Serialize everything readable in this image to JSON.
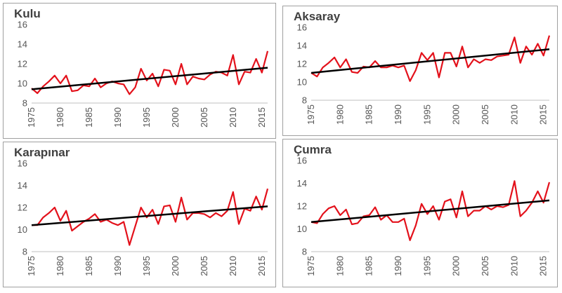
{
  "chart_data": [
    {
      "type": "line",
      "title": "Kulu",
      "xlabel": "",
      "ylabel": "",
      "xlim": [
        1975,
        2016
      ],
      "ylim": [
        8,
        16
      ],
      "yticks": [
        "8",
        "10",
        "12",
        "14",
        "16"
      ],
      "xticks": [
        "1975",
        "1980",
        "1985",
        "1990",
        "1995",
        "2000",
        "2005",
        "2010",
        "2015"
      ],
      "grid": false,
      "series": [
        {
          "color": "#e3111b",
          "x": [
            1975,
            1976,
            1977,
            1978,
            1979,
            1980,
            1981,
            1982,
            1983,
            1984,
            1985,
            1986,
            1987,
            1988,
            1989,
            1990,
            1991,
            1992,
            1993,
            1994,
            1995,
            1996,
            1997,
            1998,
            1999,
            2000,
            2001,
            2002,
            2003,
            2004,
            2005,
            2006,
            2007,
            2008,
            2009,
            2010,
            2011,
            2012,
            2013,
            2014,
            2015,
            2016
          ],
          "y": [
            9.5,
            9.0,
            9.7,
            10.2,
            10.8,
            10.0,
            10.8,
            9.2,
            9.3,
            9.8,
            9.7,
            10.5,
            9.6,
            10.0,
            10.2,
            10.0,
            9.9,
            8.9,
            9.6,
            11.5,
            10.3,
            11.0,
            9.7,
            11.4,
            11.3,
            9.9,
            12.0,
            9.9,
            10.7,
            10.5,
            10.4,
            10.9,
            11.2,
            11.1,
            10.8,
            12.9,
            9.9,
            11.2,
            11.1,
            12.5,
            11.1,
            13.3
          ]
        },
        {
          "color": "#000000",
          "trend": [
            9.4,
            11.6
          ]
        }
      ]
    },
    {
      "type": "line",
      "title": "Aksaray",
      "xlabel": "",
      "ylabel": "",
      "xlim": [
        1975,
        2016
      ],
      "ylim": [
        8,
        16
      ],
      "yticks": [
        "8",
        "10",
        "12",
        "14",
        "16"
      ],
      "xticks": [
        "1975",
        "1980",
        "1985",
        "1990",
        "1995",
        "2000",
        "2005",
        "2010",
        "2015"
      ],
      "grid": false,
      "series": [
        {
          "color": "#e3111b",
          "x": [
            1975,
            1976,
            1977,
            1978,
            1979,
            1980,
            1981,
            1982,
            1983,
            1984,
            1985,
            1986,
            1987,
            1988,
            1989,
            1990,
            1991,
            1992,
            1993,
            1994,
            1995,
            1996,
            1997,
            1998,
            1999,
            2000,
            2001,
            2002,
            2003,
            2004,
            2005,
            2006,
            2007,
            2008,
            2009,
            2010,
            2011,
            2012,
            2013,
            2014,
            2015,
            2016
          ],
          "y": [
            11.0,
            10.6,
            11.6,
            12.1,
            12.7,
            11.6,
            12.5,
            11.1,
            11.0,
            11.7,
            11.6,
            12.3,
            11.6,
            11.6,
            11.8,
            11.6,
            11.8,
            10.1,
            11.3,
            13.2,
            12.4,
            13.2,
            10.5,
            13.2,
            13.2,
            11.7,
            13.9,
            11.6,
            12.5,
            12.1,
            12.5,
            12.4,
            12.8,
            12.9,
            13.0,
            14.9,
            12.1,
            13.9,
            13.0,
            14.2,
            12.9,
            15.1
          ]
        },
        {
          "color": "#000000",
          "trend": [
            11.0,
            13.6
          ]
        }
      ]
    },
    {
      "type": "line",
      "title": "Karapınar",
      "xlabel": "",
      "ylabel": "",
      "xlim": [
        1975,
        2016
      ],
      "ylim": [
        8,
        16
      ],
      "yticks": [
        "8",
        "10",
        "12",
        "14",
        "16"
      ],
      "xticks": [
        "1975",
        "1980",
        "1985",
        "1990",
        "1995",
        "2000",
        "2005",
        "2010",
        "2015"
      ],
      "grid": false,
      "series": [
        {
          "color": "#e3111b",
          "x": [
            1975,
            1976,
            1977,
            1978,
            1979,
            1980,
            1981,
            1982,
            1983,
            1984,
            1985,
            1986,
            1987,
            1988,
            1989,
            1990,
            1991,
            1992,
            1993,
            1994,
            1995,
            1996,
            1997,
            1998,
            1999,
            2000,
            2001,
            2002,
            2003,
            2004,
            2005,
            2006,
            2007,
            2008,
            2009,
            2010,
            2011,
            2012,
            2013,
            2014,
            2015,
            2016
          ],
          "y": [
            10.4,
            10.4,
            11.1,
            11.5,
            12.0,
            10.8,
            11.7,
            9.9,
            10.3,
            10.7,
            11.0,
            11.4,
            10.7,
            10.9,
            10.6,
            10.4,
            10.7,
            8.6,
            10.3,
            12.0,
            11.1,
            11.8,
            10.5,
            12.1,
            12.2,
            10.7,
            12.9,
            10.9,
            11.5,
            11.5,
            11.4,
            11.1,
            11.5,
            11.2,
            11.7,
            13.4,
            10.5,
            11.9,
            11.7,
            13.0,
            11.8,
            13.7
          ]
        },
        {
          "color": "#000000",
          "trend": [
            10.4,
            12.1
          ]
        }
      ]
    },
    {
      "type": "line",
      "title": "Çumra",
      "xlabel": "",
      "ylabel": "",
      "xlim": [
        1975,
        2016
      ],
      "ylim": [
        8,
        16
      ],
      "yticks": [
        "8",
        "10",
        "12",
        "14",
        "16"
      ],
      "xticks": [
        "1975",
        "1980",
        "1985",
        "1990",
        "1995",
        "2000",
        "2005",
        "2010",
        "2015"
      ],
      "grid": false,
      "series": [
        {
          "color": "#e3111b",
          "x": [
            1975,
            1976,
            1977,
            1978,
            1979,
            1980,
            1981,
            1982,
            1983,
            1984,
            1985,
            1986,
            1987,
            1988,
            1989,
            1990,
            1991,
            1992,
            1993,
            1994,
            1995,
            1996,
            1997,
            1998,
            1999,
            2000,
            2001,
            2002,
            2003,
            2004,
            2005,
            2006,
            2007,
            2008,
            2009,
            2010,
            2011,
            2012,
            2013,
            2014,
            2015,
            2016
          ],
          "y": [
            10.6,
            10.5,
            11.3,
            11.8,
            12.0,
            11.2,
            11.7,
            10.4,
            10.5,
            11.1,
            11.2,
            11.9,
            10.8,
            11.2,
            10.6,
            10.6,
            10.9,
            9.0,
            10.3,
            12.2,
            11.3,
            12.0,
            10.8,
            12.4,
            12.6,
            11.0,
            13.3,
            11.1,
            11.6,
            11.6,
            12.0,
            11.7,
            12.0,
            11.9,
            12.1,
            14.2,
            11.1,
            11.6,
            12.3,
            13.3,
            12.3,
            14.1
          ]
        },
        {
          "color": "#000000",
          "trend": [
            10.6,
            12.5
          ]
        }
      ]
    }
  ]
}
